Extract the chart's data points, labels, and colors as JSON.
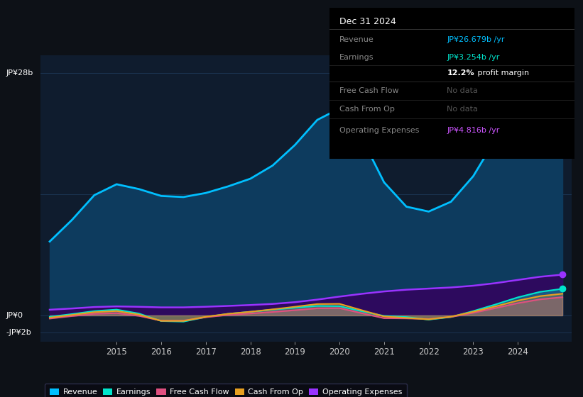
{
  "bg_color": "#0d1117",
  "plot_bg_color": "#0f1c2e",
  "grid_color": "#1e3050",
  "title_date": "Dec 31 2024",
  "ylabel_top": "JP¥28b",
  "ylabel_zero": "JP¥0",
  "ylabel_neg": "-JP¥2b",
  "years": [
    2013.5,
    2014.0,
    2014.5,
    2015.0,
    2015.5,
    2016.0,
    2016.5,
    2017.0,
    2017.5,
    2018.0,
    2018.5,
    2019.0,
    2019.5,
    2020.0,
    2020.5,
    2021.0,
    2021.5,
    2022.0,
    2022.5,
    2023.0,
    2023.5,
    2024.0,
    2024.5,
    2025.0
  ],
  "revenue": [
    7.5,
    11.0,
    14.5,
    16.0,
    14.5,
    13.5,
    13.5,
    14.0,
    15.0,
    15.5,
    17.0,
    19.5,
    22.5,
    26.5,
    21.0,
    14.0,
    12.0,
    11.5,
    12.5,
    15.5,
    20.5,
    25.0,
    27.0,
    27.0
  ],
  "earnings": [
    -0.3,
    0.2,
    0.5,
    0.9,
    0.6,
    -1.2,
    -0.9,
    0.0,
    0.2,
    0.4,
    0.7,
    0.9,
    1.1,
    1.4,
    0.5,
    -0.5,
    0.3,
    -1.0,
    -0.2,
    0.5,
    1.2,
    2.2,
    2.8,
    3.2
  ],
  "free_cash_flow": [
    -0.5,
    0.0,
    0.2,
    0.4,
    0.2,
    -1.0,
    -0.7,
    -0.1,
    0.1,
    0.2,
    0.4,
    0.6,
    0.8,
    1.2,
    0.3,
    -0.8,
    0.0,
    -0.7,
    -0.2,
    0.3,
    0.8,
    1.5,
    1.9,
    2.2
  ],
  "cash_from_op": [
    -0.4,
    0.1,
    0.4,
    0.7,
    0.4,
    -1.1,
    -0.8,
    0.0,
    0.2,
    0.4,
    0.7,
    1.0,
    1.3,
    1.8,
    0.6,
    -0.6,
    0.1,
    -0.9,
    -0.1,
    0.4,
    1.0,
    1.8,
    2.3,
    2.6
  ],
  "operating_expenses": [
    0.6,
    0.8,
    1.0,
    1.1,
    1.0,
    0.9,
    0.9,
    1.0,
    1.1,
    1.2,
    1.3,
    1.5,
    1.8,
    2.2,
    2.5,
    2.8,
    3.0,
    3.1,
    3.2,
    3.4,
    3.7,
    4.1,
    4.5,
    4.8
  ],
  "revenue_color": "#00bfff",
  "earnings_color": "#00e5cc",
  "fcf_color": "#e05080",
  "cashop_color": "#e8a020",
  "opex_color": "#9933ff",
  "revenue_fill": "#0d3b5e",
  "opex_fill": "#2d0a5e",
  "xticks": [
    2015,
    2016,
    2017,
    2018,
    2019,
    2020,
    2021,
    2022,
    2023,
    2024
  ],
  "ylim_min": -3,
  "ylim_max": 30,
  "legend_items": [
    {
      "label": "Revenue",
      "color": "#00bfff"
    },
    {
      "label": "Earnings",
      "color": "#00e5cc"
    },
    {
      "label": "Free Cash Flow",
      "color": "#e05080"
    },
    {
      "label": "Cash From Op",
      "color": "#e8a020"
    },
    {
      "label": "Operating Expenses",
      "color": "#9933ff"
    }
  ],
  "table_rows": [
    {
      "label": "Revenue",
      "value": "JP¥26.679b /yr",
      "value_color": "#00bfff"
    },
    {
      "label": "Earnings",
      "value": "JP¥3.254b /yr",
      "value_color": "#00e5cc"
    },
    {
      "label": "",
      "value": "12.2% profit margin",
      "value_color": "#ffffff",
      "bold_prefix": "12.2%"
    },
    {
      "label": "Free Cash Flow",
      "value": "No data",
      "value_color": "#555555"
    },
    {
      "label": "Cash From Op",
      "value": "No data",
      "value_color": "#555555"
    },
    {
      "label": "Operating Expenses",
      "value": "JP¥4.816b /yr",
      "value_color": "#cc55ff"
    }
  ]
}
